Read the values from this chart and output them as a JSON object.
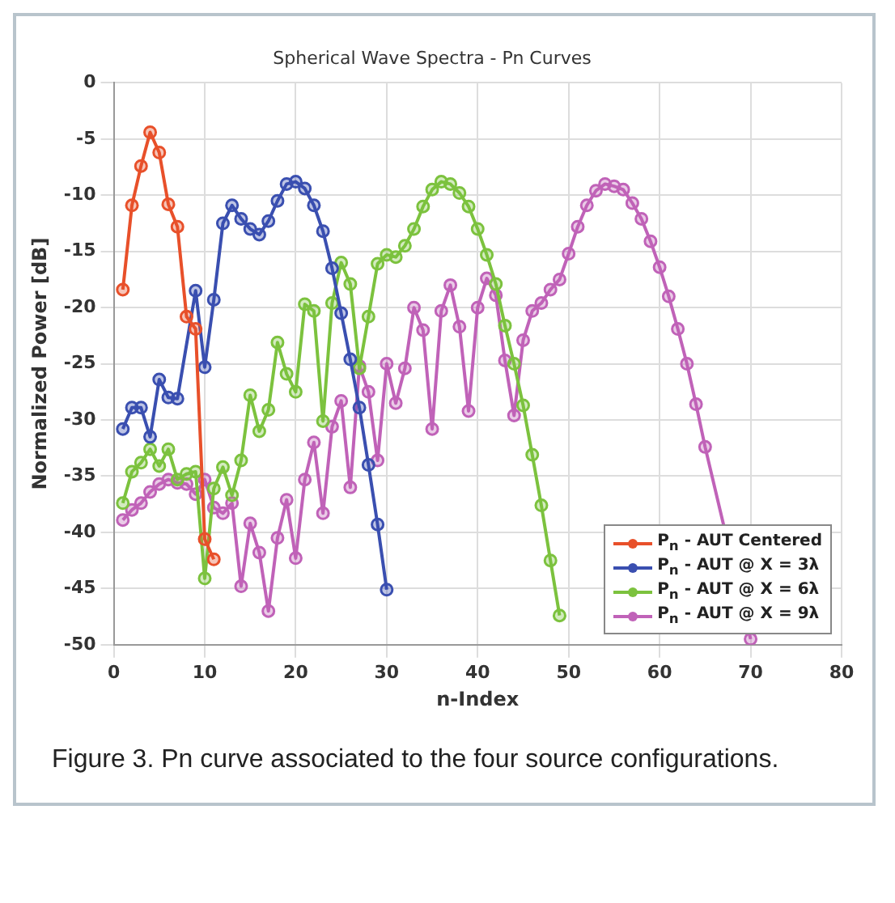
{
  "chart_data": {
    "type": "line",
    "title": "Spherical Wave Spectra - Pn Curves",
    "xlabel": "n-Index",
    "ylabel": "Normalized Power [dB]",
    "xlim": [
      0,
      80
    ],
    "xticks": [
      0,
      10,
      20,
      30,
      40,
      50,
      60,
      70,
      80
    ],
    "ylim": [
      -50,
      0
    ],
    "yticks": [
      -50,
      -45,
      -40,
      -35,
      -30,
      -25,
      -20,
      -15,
      -10,
      -5,
      0
    ],
    "grid": true,
    "legend": "bottom right",
    "marker": "circle",
    "line_style": "solid",
    "annotations": [
      "Figure 3. Pn curve associated to the four source configurations."
    ],
    "series": [
      {
        "name": "P$_{n}$ - AUT Centered",
        "color": "#e8502a",
        "x": [
          1,
          2,
          3,
          4,
          5,
          6,
          7,
          8,
          9,
          10,
          11
        ],
        "values": [
          -18.4,
          -10.9,
          -7.4,
          -4.4,
          -6.2,
          -10.8,
          -12.8,
          -20.8,
          -21.9,
          -40.6,
          -42.4
        ]
      },
      {
        "name": "P$_{n}$ - AUT @ X = 3λ",
        "color": "#3a4fb0",
        "x": [
          1,
          2,
          3,
          4,
          5,
          6,
          7,
          8,
          9,
          10,
          11,
          12,
          13,
          14,
          15,
          16,
          17,
          18,
          19,
          20,
          21,
          22,
          23,
          24,
          25,
          26,
          27,
          28,
          29,
          30
        ],
        "values": [
          -30.8,
          -28.9,
          -28.9,
          -31.5,
          -26.4,
          -28,
          -28.1,
          null,
          -18.5,
          -25.3,
          -19.3,
          -12.5,
          -10.9,
          -12.1,
          -13,
          -13.5,
          -12.3,
          -10.5,
          -9,
          -8.8,
          -9.4,
          -10.9,
          -13.2,
          -16.5,
          -20.5,
          -24.6,
          -28.9,
          -34,
          -39.3,
          -45.1
        ]
      },
      {
        "name": "P$_{n}$ - AUT @ X = 6λ",
        "color": "#7cc23e",
        "x": [
          1,
          2,
          3,
          4,
          5,
          6,
          7,
          8,
          9,
          10,
          11,
          12,
          13,
          14,
          15,
          16,
          17,
          18,
          19,
          20,
          21,
          22,
          23,
          24,
          25,
          26,
          27,
          28,
          29,
          30,
          31,
          32,
          33,
          34,
          35,
          36,
          37,
          38,
          39,
          40,
          41,
          42,
          43,
          44,
          45,
          46,
          47,
          48,
          49
        ],
        "values": [
          -37.4,
          -34.6,
          -33.8,
          -32.6,
          -34.1,
          -32.6,
          -35.3,
          -34.8,
          -34.6,
          -44.1,
          -36.1,
          -34.2,
          -36.7,
          -33.6,
          -27.8,
          -31,
          -29.1,
          -23.1,
          -25.9,
          -27.5,
          -19.7,
          -20.3,
          -30.1,
          -19.6,
          -16,
          -17.9,
          -25.4,
          -20.8,
          -16.1,
          -15.3,
          -15.5,
          -14.5,
          -13,
          -11,
          -9.5,
          -8.8,
          -9,
          -9.8,
          -11,
          -13,
          -15.3,
          -17.9,
          -21.6,
          -25,
          -28.7,
          -33.1,
          -37.6,
          -42.5,
          -47.4
        ]
      },
      {
        "name": "P$_{n}$ - AUT @ X = 9λ",
        "color": "#c062b8",
        "x": [
          1,
          2,
          3,
          4,
          5,
          6,
          7,
          8,
          9,
          10,
          11,
          12,
          13,
          14,
          15,
          16,
          17,
          18,
          19,
          20,
          21,
          22,
          23,
          24,
          25,
          26,
          27,
          28,
          29,
          30,
          31,
          32,
          33,
          34,
          35,
          36,
          37,
          38,
          39,
          40,
          41,
          42,
          43,
          44,
          45,
          46,
          47,
          48,
          49,
          50,
          51,
          52,
          53,
          54,
          55,
          56,
          57,
          58,
          59,
          60,
          61,
          62,
          63,
          64,
          65,
          66,
          67,
          68,
          69,
          70
        ],
        "values": [
          -38.9,
          -38,
          -37.4,
          -36.4,
          -35.7,
          -35.3,
          -35.6,
          -35.7,
          -36.6,
          -35.3,
          -37.8,
          -38.3,
          -37.4,
          -44.8,
          -39.2,
          -41.8,
          -47,
          -40.5,
          -37.1,
          -42.3,
          -35.3,
          -32,
          -38.3,
          -30.6,
          -28.3,
          -36,
          -25.2,
          -27.5,
          -33.6,
          -25,
          -28.5,
          -25.4,
          -20,
          -22,
          -30.8,
          -20.3,
          -18,
          -21.7,
          -29.2,
          -20,
          -17.4,
          -18.9,
          -24.7,
          -29.6,
          -22.9,
          -20.3,
          -19.6,
          -18.4,
          -17.5,
          -15.2,
          -12.8,
          -10.9,
          -9.6,
          -9,
          -9.2,
          -9.5,
          -10.7,
          -12.1,
          -14.1,
          -16.4,
          -19,
          -21.9,
          -25,
          -28.6,
          -32.4,
          null,
          null,
          null,
          null,
          -49.5
        ]
      }
    ]
  }
}
